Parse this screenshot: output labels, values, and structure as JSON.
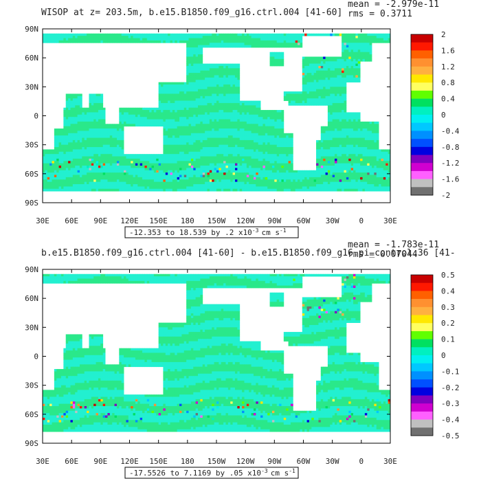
{
  "chart_data": [
    {
      "type": "heatmap",
      "title": "WISOP at z= 203.5m, b.e15.B1850.f09_g16.ctrl.004 [41-60]",
      "stats": {
        "mean": "mean = -2.979e-11",
        "rms": "rms = 0.3711"
      },
      "range_label": "-12.353 to 18.539 by .2 x10",
      "range_exp": "-3",
      "range_unit": "cm s",
      "range_unit_exp": "-1",
      "ylabels": [
        "90N",
        "60N",
        "30N",
        "0",
        "30S",
        "60S",
        "90S"
      ],
      "xlabels": [
        "30E",
        "60E",
        "90E",
        "120E",
        "150E",
        "180",
        "150W",
        "120W",
        "90W",
        "60W",
        "30W",
        "0",
        "30E"
      ],
      "colorbar_labels": [
        "2",
        "1.6",
        "1.2",
        "0.8",
        "0.4",
        "0",
        "-0.4",
        "-0.8",
        "-1.2",
        "-1.6",
        "-2"
      ],
      "ylim": [
        -90,
        90
      ],
      "xlim": [
        30,
        390
      ]
    },
    {
      "type": "heatmap",
      "title": "b.e15.B1850.f09_g16.ctrl.004 [41-60] - b.e15.B1850.f09_g16.pi_control.36 [41-",
      "stats": {
        "mean": "mean = -1.783e-11",
        "rms": "rms = 0.07044"
      },
      "range_label": "-17.5526 to 7.1169 by .05 x10",
      "range_exp": "-3",
      "range_unit": "cm s",
      "range_unit_exp": "-1",
      "ylabels": [
        "90N",
        "60N",
        "30N",
        "0",
        "30S",
        "60S",
        "90S"
      ],
      "xlabels": [
        "30E",
        "60E",
        "90E",
        "120E",
        "150E",
        "180",
        "150W",
        "120W",
        "90W",
        "60W",
        "30W",
        "0",
        "30E"
      ],
      "colorbar_labels": [
        "0.5",
        "0.4",
        "0.3",
        "0.2",
        "0.1",
        "0",
        "-0.1",
        "-0.2",
        "-0.3",
        "-0.4",
        "-0.5"
      ],
      "ylim": [
        -90,
        90
      ],
      "xlim": [
        30,
        390
      ]
    }
  ],
  "colors": {
    "scale": [
      "#c80000",
      "#ff1800",
      "#ff6000",
      "#ff9030",
      "#ffb040",
      "#ffe800",
      "#ffff60",
      "#60ff00",
      "#00e060",
      "#00f0c0",
      "#00f0f0",
      "#00c8ff",
      "#0090ff",
      "#0050ff",
      "#0000e0",
      "#8000c0",
      "#d000d0",
      "#ff60ff",
      "#c0c0c0",
      "#707070"
    ],
    "zero_main": "#2ae88a",
    "zero_alt": "#22f0d0",
    "land": "#ffffff"
  }
}
